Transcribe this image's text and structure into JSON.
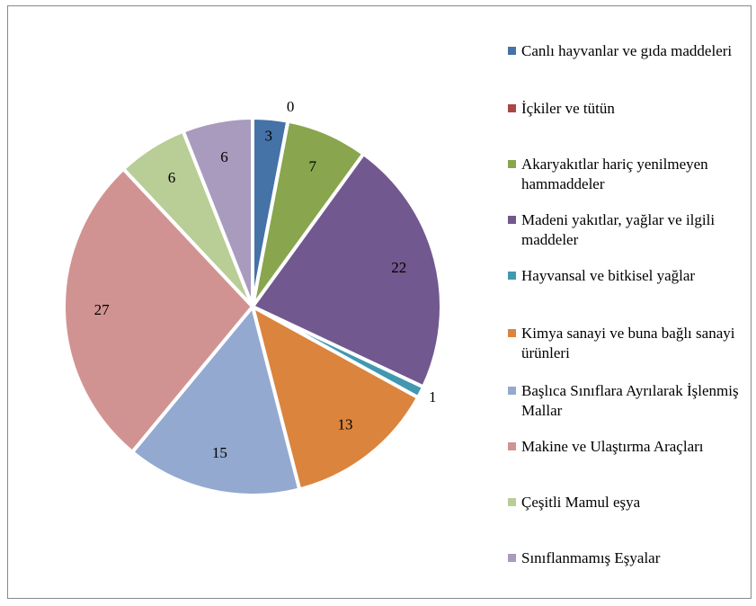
{
  "chart_data": {
    "type": "pie",
    "categories": [
      "Canlı hayvanlar ve gıda maddeleri",
      "İçkiler ve tütün",
      "Akaryakıtlar hariç yenilmeyen hammaddeler",
      "Madeni yakıtlar, yağlar ve ilgili maddeler",
      "Hayvansal ve bitkisel yağlar",
      "Kimya sanayi ve buna bağlı sanayi ürünleri",
      "Başlıca Sınıflara Ayrılarak İşlenmiş Mallar",
      "Makine ve Ulaştırma Araçları",
      "Çeşitli Mamul eşya",
      "Sınıflanmamış Eşyalar"
    ],
    "values": [
      3,
      0,
      7,
      22,
      1,
      13,
      15,
      27,
      6,
      6
    ],
    "colors": [
      "#4572a7",
      "#aa4643",
      "#89a54e",
      "#71588f",
      "#4198af",
      "#db843d",
      "#93a9cf",
      "#d19392",
      "#b9cd96",
      "#a99bbd"
    ],
    "legend": "right"
  }
}
